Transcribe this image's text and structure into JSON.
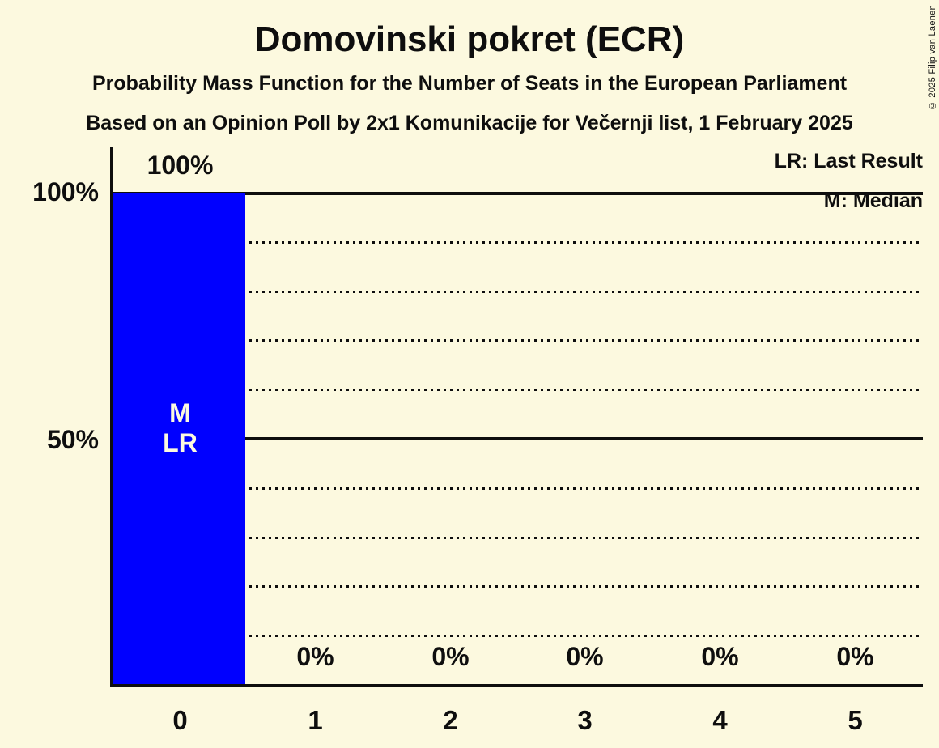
{
  "header": {
    "title": "Domovinski pokret (ECR)",
    "subtitle_line1": "Probability Mass Function for the Number of Seats in the European Parliament",
    "subtitle_line2": "Based on an Opinion Poll by 2x1 Komunikacije for Večernji list, 1 February 2025"
  },
  "copyright": "© 2025 Filip van Laenen",
  "legend": {
    "last_result": "LR: Last Result",
    "median": "M: Median"
  },
  "y_axis": {
    "tick_labels": [
      "100%",
      "50%"
    ]
  },
  "colors": {
    "background": "#FCF9DF",
    "bar": "#0000FF",
    "text": "#0E0E0E",
    "bar_annotation_text": "#FCF9DF"
  },
  "chart_data": {
    "type": "bar",
    "title": "Domovinski pokret (ECR)",
    "categories": [
      "0",
      "1",
      "2",
      "3",
      "4",
      "5"
    ],
    "values": [
      100,
      0,
      0,
      0,
      0,
      0
    ],
    "value_labels": [
      "100%",
      "0%",
      "0%",
      "0%",
      "0%",
      "0%"
    ],
    "ylim": [
      0,
      100
    ],
    "y_tick_labels": [
      "100%",
      "50%"
    ],
    "y_gridlines_dotted_pct": [
      10,
      20,
      30,
      40,
      60,
      70,
      80,
      90
    ],
    "y_gridlines_solid_pct": [
      50,
      100
    ],
    "bar_annotations": [
      "M",
      "LR"
    ],
    "median_seat": 0,
    "last_result_seat": 0,
    "legend_position": "top-right",
    "grid": "horizontal-only"
  }
}
